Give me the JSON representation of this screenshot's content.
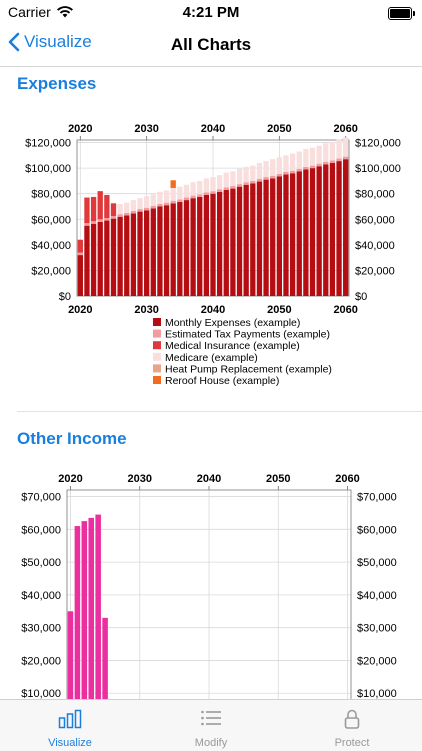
{
  "status_bar": {
    "carrier": "Carrier",
    "time": "4:21 PM"
  },
  "nav": {
    "back_label": "Visualize",
    "title": "All Charts"
  },
  "sections": {
    "expenses_title": "Expenses",
    "other_income_title": "Other Income"
  },
  "tabs": [
    {
      "label": "Visualize",
      "icon": "bar-chart-icon"
    },
    {
      "label": "Modify",
      "icon": "list-icon"
    },
    {
      "label": "Protect",
      "icon": "lock-icon"
    }
  ],
  "colors": {
    "accent": "#1a7fdc",
    "monthly": "#b50d12",
    "estimated_tax": "#f19c9f",
    "medical": "#e0393c",
    "medicare": "#f9dede",
    "heat_pump": "#e9a48a",
    "reroof": "#f26b1e",
    "other_income": "#ec2fa0"
  },
  "chart_data": [
    {
      "type": "bar",
      "stacked": true,
      "title": "",
      "x_ticks": [
        "2020",
        "2030",
        "2040",
        "2050",
        "2060"
      ],
      "y_ticks": [
        "$0",
        "$20,000",
        "$40,000",
        "$60,000",
        "$80,000",
        "$100,000",
        "$120,000"
      ],
      "xlim": [
        2019.5,
        2060.5
      ],
      "ylim": [
        0,
        122000
      ],
      "grid": true,
      "legend_position": "bottom",
      "x": [
        2020,
        2021,
        2022,
        2023,
        2024,
        2025,
        2026,
        2027,
        2028,
        2029,
        2030,
        2031,
        2032,
        2033,
        2034,
        2035,
        2036,
        2037,
        2038,
        2039,
        2040,
        2041,
        2042,
        2043,
        2044,
        2045,
        2046,
        2047,
        2048,
        2049,
        2050,
        2051,
        2052,
        2053,
        2054,
        2055,
        2056,
        2057,
        2058,
        2059,
        2060
      ],
      "series": [
        {
          "name": "Monthly Expenses (example)",
          "color_key": "monthly",
          "values": [
            32000,
            55000,
            56500,
            58000,
            59000,
            60500,
            62000,
            63000,
            64500,
            66000,
            67000,
            68500,
            70000,
            71000,
            72500,
            73500,
            75000,
            76500,
            77500,
            79000,
            80000,
            81500,
            83000,
            84000,
            85500,
            87000,
            88000,
            89500,
            91000,
            92000,
            93500,
            95000,
            96000,
            97500,
            99000,
            100000,
            101500,
            103000,
            104000,
            105500,
            107000
          ]
        },
        {
          "name": "Estimated Tax Payments (example)",
          "color_key": "estimated_tax",
          "values": [
            2000,
            2000,
            2000,
            2000,
            2000,
            2000,
            2000,
            2000,
            2000,
            2000,
            2000,
            2000,
            2000,
            2000,
            2000,
            2000,
            2000,
            2000,
            2000,
            2000,
            2000,
            2000,
            2000,
            2000,
            2000,
            2000,
            2000,
            2000,
            2000,
            2000,
            2000,
            2000,
            2000,
            2000,
            2000,
            2000,
            2000,
            2000,
            2000,
            2000,
            2000
          ]
        },
        {
          "name": "Medical Insurance (example)",
          "color_key": "medical",
          "values": [
            10000,
            20000,
            19000,
            22000,
            18000,
            10000,
            0,
            0,
            0,
            0,
            0,
            0,
            0,
            0,
            0,
            0,
            0,
            0,
            0,
            0,
            0,
            0,
            0,
            0,
            0,
            0,
            0,
            0,
            0,
            0,
            0,
            0,
            0,
            0,
            0,
            0,
            0,
            0,
            0,
            0,
            0
          ]
        },
        {
          "name": "Medicare (example)",
          "color_key": "medicare",
          "values": [
            0,
            0,
            0,
            0,
            0,
            0,
            8000,
            8000,
            8500,
            8500,
            9000,
            9000,
            9500,
            9500,
            10000,
            10000,
            10000,
            10500,
            10500,
            11000,
            11000,
            11000,
            11500,
            11500,
            12000,
            12000,
            12000,
            12500,
            12500,
            13000,
            13000,
            13000,
            13500,
            13500,
            14000,
            14000,
            14000,
            14500,
            14500,
            15000,
            15000
          ]
        },
        {
          "name": "Heat Pump Replacement (example)",
          "color_key": "heat_pump",
          "values": [
            0,
            0,
            0,
            0,
            0,
            0,
            0,
            0,
            0,
            0,
            0,
            0,
            0,
            0,
            0,
            0,
            0,
            0,
            0,
            0,
            0,
            0,
            0,
            0,
            0,
            0,
            0,
            0,
            0,
            0,
            0,
            0,
            0,
            0,
            0,
            0,
            0,
            0,
            0,
            0,
            0
          ]
        },
        {
          "name": "Reroof House (example)",
          "color_key": "reroof",
          "values": [
            0,
            0,
            0,
            0,
            0,
            0,
            0,
            0,
            0,
            0,
            0,
            0,
            0,
            0,
            6000,
            0,
            0,
            0,
            0,
            0,
            0,
            0,
            0,
            0,
            0,
            0,
            0,
            0,
            0,
            0,
            0,
            0,
            0,
            0,
            0,
            0,
            0,
            0,
            0,
            0,
            0
          ]
        }
      ]
    },
    {
      "type": "bar",
      "title": "",
      "x_ticks": [
        "2020",
        "2030",
        "2040",
        "2050",
        "2060"
      ],
      "y_ticks": [
        "$10,000",
        "$20,000",
        "$30,000",
        "$40,000",
        "$50,000",
        "$60,000",
        "$70,000"
      ],
      "xlim": [
        2019.5,
        2060.5
      ],
      "ylim": [
        0,
        72000
      ],
      "grid": true,
      "x": [
        2020,
        2021,
        2022,
        2023,
        2024,
        2025
      ],
      "series": [
        {
          "name": "",
          "color_key": "other_income",
          "values": [
            35000,
            61000,
            62500,
            63500,
            64500,
            33000
          ]
        }
      ]
    }
  ]
}
